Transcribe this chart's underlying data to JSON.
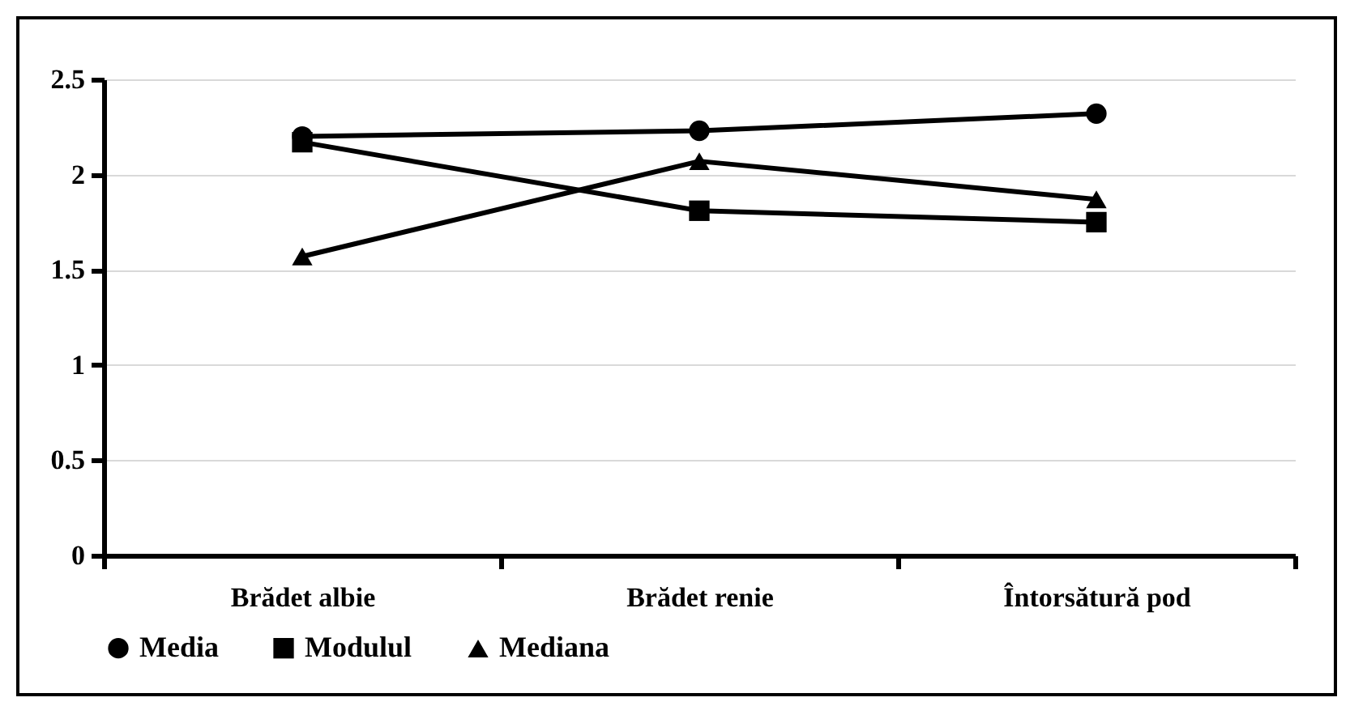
{
  "chart_data": {
    "type": "line",
    "categories": [
      "Brădet albie",
      "Brădet renie",
      "Întorsătură pod"
    ],
    "series": [
      {
        "name": "Media",
        "color": "#000000",
        "marker": "circle",
        "values": [
          2.2,
          2.23,
          2.32
        ]
      },
      {
        "name": "Modulul",
        "color": "#000000",
        "marker": "square",
        "values": [
          2.17,
          1.81,
          1.75
        ]
      },
      {
        "name": "Mediana",
        "color": "#000000",
        "marker": "triangle",
        "values": [
          1.57,
          2.07,
          1.87
        ]
      }
    ],
    "ylim": [
      0,
      2.5
    ],
    "yticks": [
      0,
      0.5,
      1,
      1.5,
      2,
      2.5
    ],
    "grid": "y",
    "legend": "bottom",
    "line_style": "solid"
  }
}
